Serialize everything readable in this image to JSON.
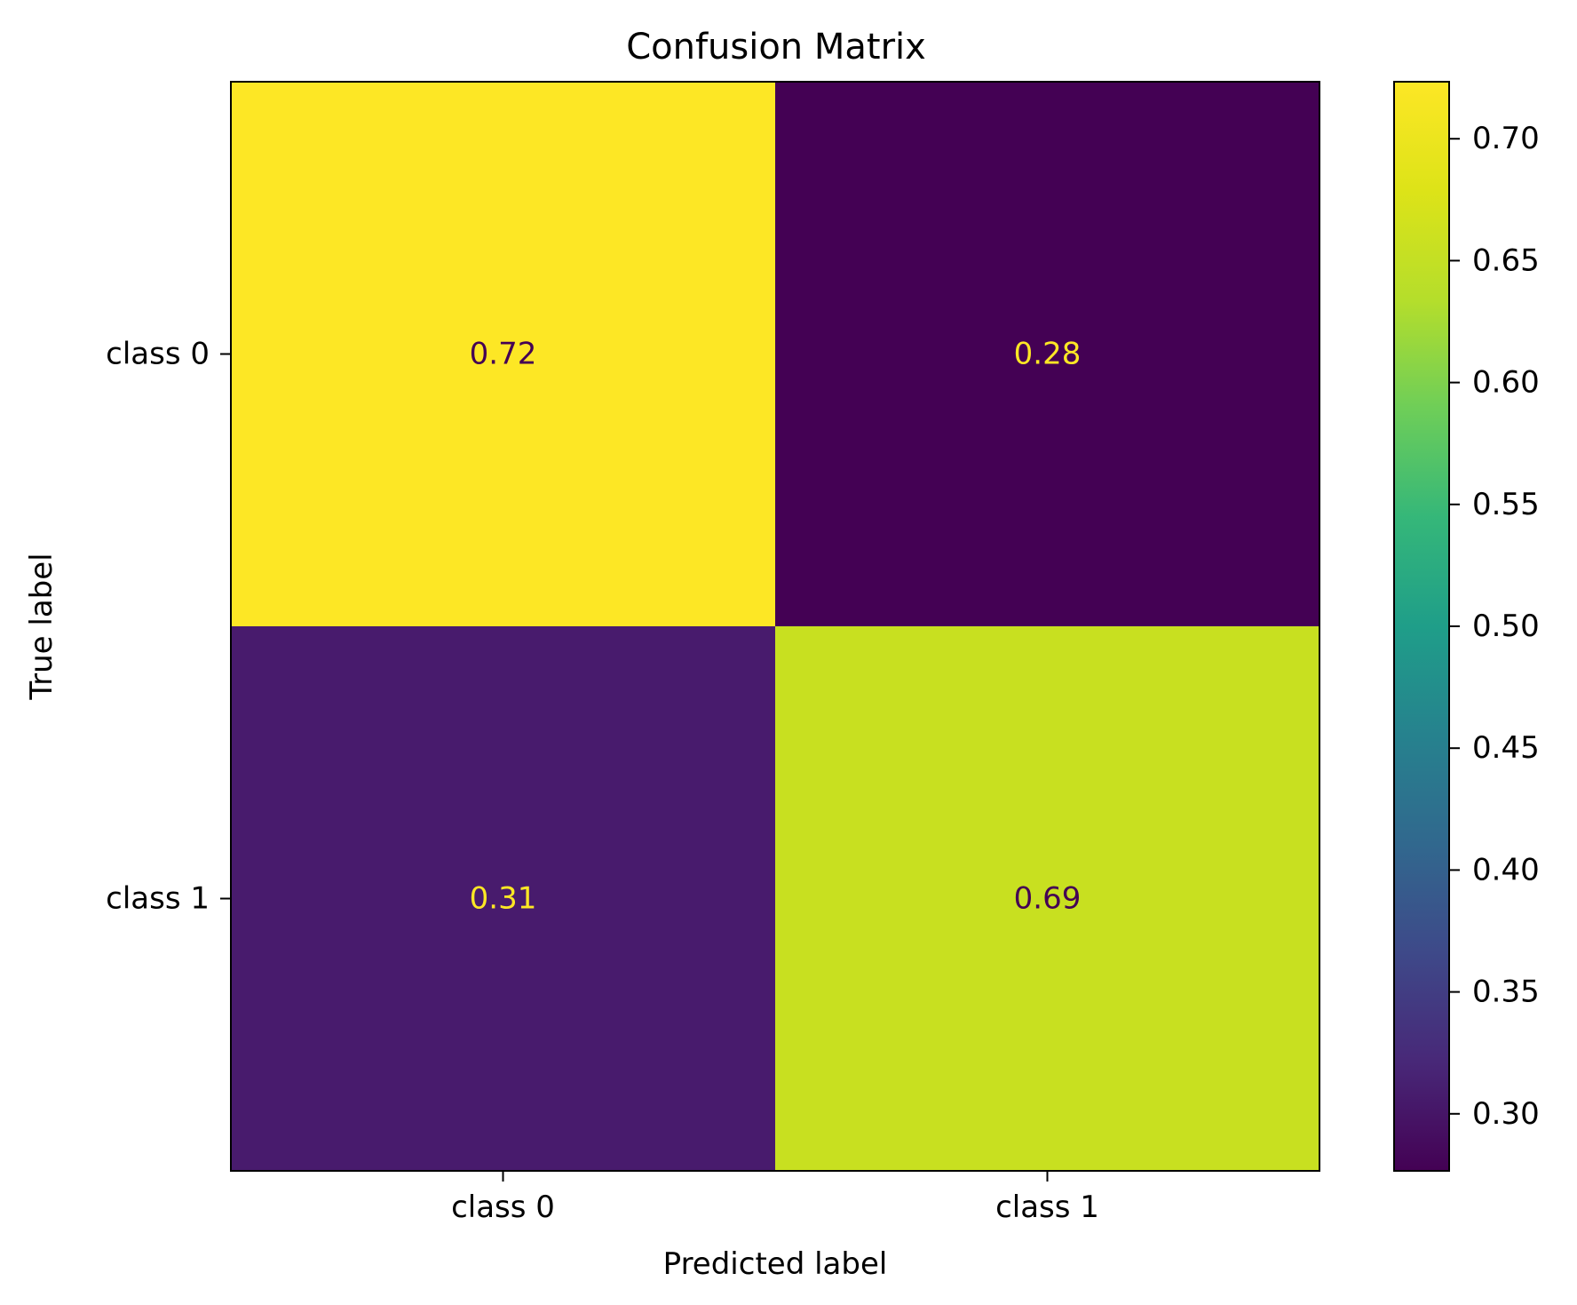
{
  "chart_data": {
    "type": "heatmap",
    "title": "Confusion Matrix",
    "xlabel": "Predicted label",
    "ylabel": "True label",
    "x_categories": [
      "class 0",
      "class 1"
    ],
    "y_categories": [
      "class 0",
      "class 1"
    ],
    "values": [
      [
        0.72,
        0.28
      ],
      [
        0.31,
        0.69
      ]
    ],
    "value_labels": [
      [
        "0.72",
        "0.28"
      ],
      [
        "0.31",
        "0.69"
      ]
    ],
    "colormap": "viridis",
    "cell_colors": [
      [
        "#fde725",
        "#440154"
      ],
      [
        "#481b6d",
        "#c8e020"
      ]
    ],
    "cell_text_colors": [
      [
        "#440154",
        "#fde725"
      ],
      [
        "#fde725",
        "#440154"
      ]
    ],
    "colorbar": {
      "range": [
        0.2766,
        0.7234
      ],
      "ticks": [
        0.3,
        0.35,
        0.4,
        0.45,
        0.5,
        0.55,
        0.6,
        0.65,
        0.7
      ],
      "tick_labels": [
        "0.30",
        "0.35",
        "0.40",
        "0.45",
        "0.50",
        "0.55",
        "0.60",
        "0.65",
        "0.70"
      ]
    },
    "grid": false
  }
}
